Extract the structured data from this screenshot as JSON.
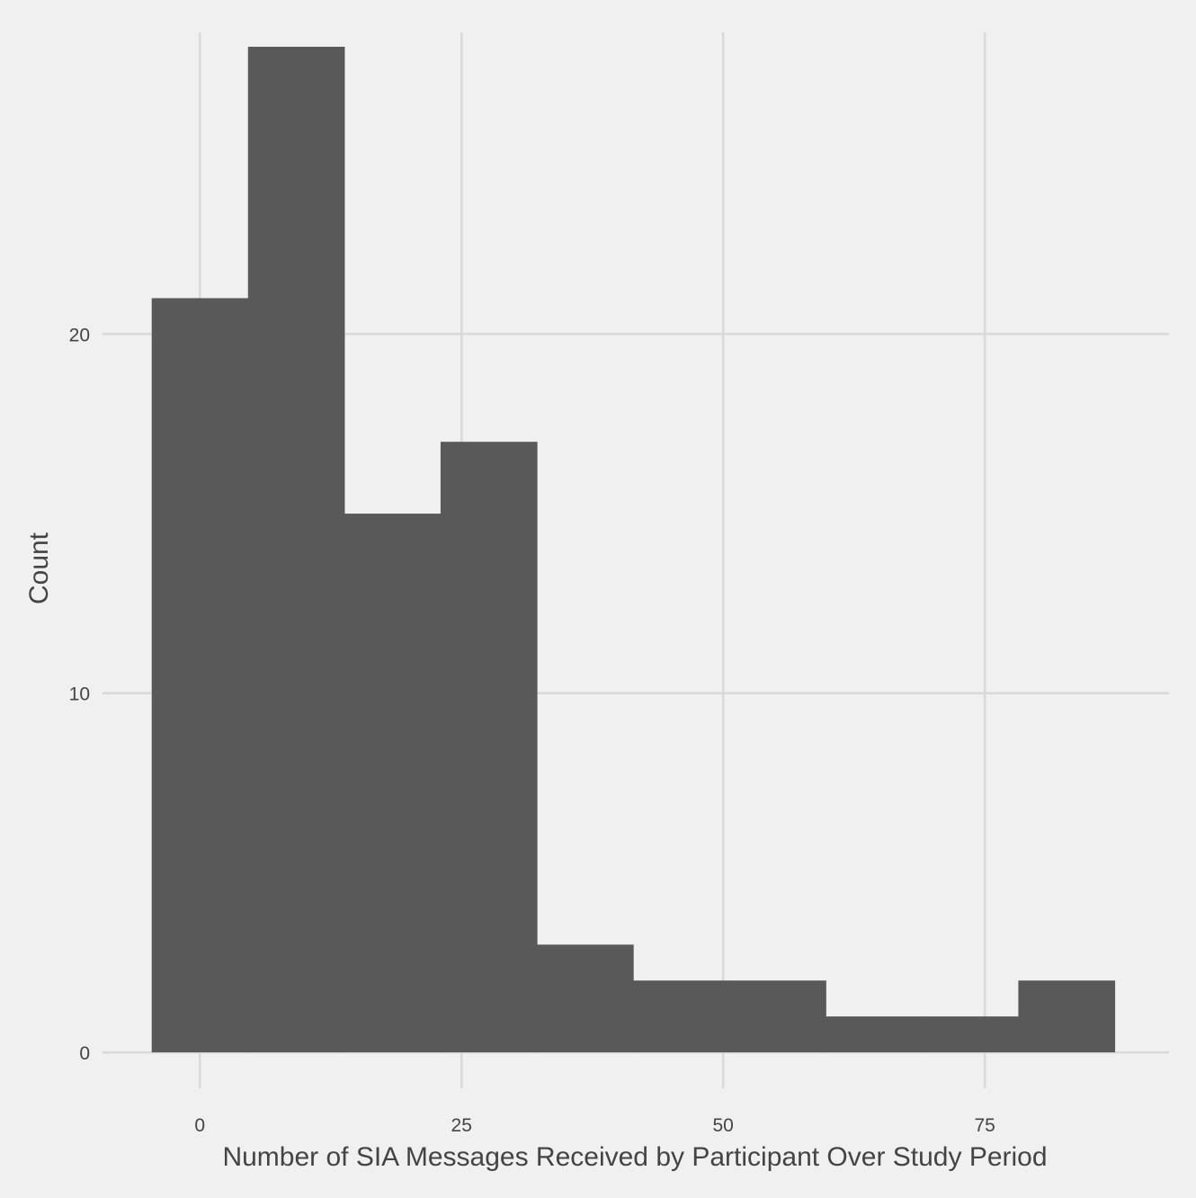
{
  "chart_data": {
    "type": "bar",
    "title": "",
    "xlabel": "Number of SIA Messages Received by Participant Over Study Period",
    "ylabel": "Count",
    "xlim": [
      -9.3,
      92.6
    ],
    "ylim": [
      -1.0,
      28.4
    ],
    "x_ticks": [
      0,
      25,
      50,
      75
    ],
    "y_ticks": [
      0,
      10,
      20
    ],
    "grid": true,
    "colors": {
      "background": "#f0f0f0",
      "bar": "#595959",
      "grid": "#d9d9d9",
      "text": "#444444"
    },
    "bins": [
      {
        "start": -4.6,
        "end": 4.6,
        "count": 21
      },
      {
        "start": 4.6,
        "end": 13.8,
        "count": 28
      },
      {
        "start": 13.8,
        "end": 23.0,
        "count": 15
      },
      {
        "start": 23.0,
        "end": 32.2,
        "count": 17
      },
      {
        "start": 32.2,
        "end": 41.4,
        "count": 3
      },
      {
        "start": 41.4,
        "end": 50.6,
        "count": 2
      },
      {
        "start": 50.6,
        "end": 59.8,
        "count": 2
      },
      {
        "start": 59.8,
        "end": 69.0,
        "count": 1
      },
      {
        "start": 69.0,
        "end": 78.2,
        "count": 1
      },
      {
        "start": 78.2,
        "end": 87.4,
        "count": 2
      }
    ]
  }
}
